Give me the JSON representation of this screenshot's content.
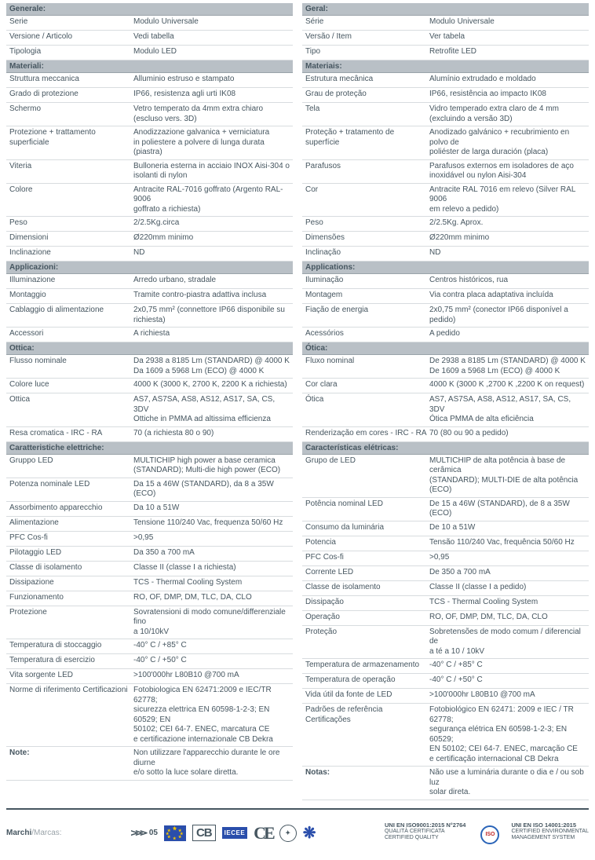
{
  "left": {
    "sections": [
      {
        "type": "head",
        "text": "Generale:"
      },
      {
        "type": "row",
        "label": "Serie",
        "value": "Modulo Universale"
      },
      {
        "type": "row",
        "label": "Versione / Articolo",
        "value": "Vedi tabella"
      },
      {
        "type": "row",
        "label": "Tipologia",
        "value": "Modulo LED"
      },
      {
        "type": "head",
        "text": "Materiali:"
      },
      {
        "type": "row",
        "label": "Struttura meccanica",
        "value": "Alluminio estruso e stampato"
      },
      {
        "type": "row",
        "label": "Grado di protezione",
        "value": "IP66, resistenza agli urti IK08"
      },
      {
        "type": "row",
        "label": "Schermo",
        "value": "Vetro temperato da 4mm extra chiaro\n(escluso vers. 3D)"
      },
      {
        "type": "row",
        "label": "Protezione + trattamento\nsuperficiale",
        "value": "Anodizzazione galvanica + verniciatura\nin poliestere a polvere di lunga durata (piastra)"
      },
      {
        "type": "row",
        "label": "Viteria",
        "value": "Bulloneria esterna in acciaio INOX Aisi-304 o\nisolanti di nylon"
      },
      {
        "type": "row",
        "label": "Colore",
        "value": "Antracite RAL-7016 goffrato (Argento RAL-9006\ngoffrato a richiesta)"
      },
      {
        "type": "row",
        "label": "Peso",
        "value": "2/2.5Kg.circa"
      },
      {
        "type": "row",
        "label": "Dimensioni",
        "value": "Ø220mm minimo"
      },
      {
        "type": "row",
        "label": "Inclinazione",
        "value": "ND"
      },
      {
        "type": "head",
        "text": "Applicazioni:"
      },
      {
        "type": "row",
        "label": "Illuminazione",
        "value": "Arredo urbano, stradale"
      },
      {
        "type": "row",
        "label": "Montaggio",
        "value": "Tramite contro-piastra adattiva inclusa"
      },
      {
        "type": "row",
        "label": "Cablaggio di alimentazione",
        "value": "2x0,75 mm² (connettore IP66 disponibile su\nrichiesta)"
      },
      {
        "type": "row",
        "label": "Accessori",
        "value": "A richiesta"
      },
      {
        "type": "head",
        "text": "Ottica:"
      },
      {
        "type": "row",
        "label": "Flusso nominale",
        "value": "Da 2938 a 8185 Lm (STANDARD) @ 4000 K\nDa 1609 a 5968 Lm (ECO) @ 4000 K"
      },
      {
        "type": "row",
        "label": "Colore luce",
        "value": "4000 K (3000 K, 2700 K, 2200 K a richiesta)"
      },
      {
        "type": "row",
        "label": "Ottica",
        "value": "AS7, AS7SA, AS8, AS12, AS17, SA, CS, 3DV\nOttiche in PMMA ad altissima efficienza"
      },
      {
        "type": "row",
        "label": "Resa cromatica - IRC - RA",
        "value": "70 (a richiesta 80 o 90)"
      },
      {
        "type": "head",
        "text": "Caratteristiche elettriche:"
      },
      {
        "type": "row",
        "label": "Gruppo LED",
        "value": "MULTICHIP high power a base ceramica\n(STANDARD); Multi-die high power (ECO)"
      },
      {
        "type": "row",
        "label": "Potenza nominale LED",
        "value": "Da 15 a 46W (STANDARD), da 8 a 35W (ECO)"
      },
      {
        "type": "row",
        "label": "Assorbimento apparecchio",
        "value": "Da 10 a 51W"
      },
      {
        "type": "row",
        "label": "Alimentazione",
        "value": "Tensione 110/240 Vac, frequenza 50/60 Hz"
      },
      {
        "type": "row",
        "label": "PFC Cos-fi",
        "value": ">0,95"
      },
      {
        "type": "row",
        "label": "Pilotaggio LED",
        "value": "Da 350 a 700 mA"
      },
      {
        "type": "row",
        "label": "Classe di isolamento",
        "value": "Classe II (classe I a richiesta)"
      },
      {
        "type": "row",
        "label": "Dissipazione",
        "value": "TCS - Thermal Cooling System"
      },
      {
        "type": "row",
        "label": "Funzionamento",
        "value": "RO, OF, DMP, DM, TLC, DA, CLO"
      },
      {
        "type": "row",
        "label": "Protezione",
        "value": "Sovratensioni di modo comune/differenziale fino\na 10/10kV"
      },
      {
        "type": "row",
        "label": "Temperatura di stoccaggio",
        "value": "-40° C / +85° C"
      },
      {
        "type": "row",
        "label": "Temperatura di esercizio",
        "value": "-40° C / +50° C"
      },
      {
        "type": "row",
        "label": "Vita sorgente LED",
        "value": ">100'000hr L80B10 @700 mA"
      },
      {
        "type": "row",
        "label": "Norme di riferimento\nCertificazioni",
        "value": "Fotobiologica EN 62471:2009 e IEC/TR 62778;\nsicurezza elettrica EN 60598-1-2-3; EN 60529; EN\n50102; CEI 64-7. ENEC, marcatura CE\ne certificazione internazionale CB Dekra"
      },
      {
        "type": "note",
        "label": "Note:",
        "value": "Non utilizzare l'apparecchio durante le ore diurne\ne/o sotto la luce solare diretta."
      }
    ]
  },
  "right": {
    "sections": [
      {
        "type": "head",
        "text": "Geral:"
      },
      {
        "type": "row",
        "label": "Série",
        "value": "Modulo Universale"
      },
      {
        "type": "row",
        "label": "Versão / Item",
        "value": "Ver tabela"
      },
      {
        "type": "row",
        "label": "Tipo",
        "value": "Retrofite LED"
      },
      {
        "type": "head",
        "text": "Materiais:"
      },
      {
        "type": "row",
        "label": "Estrutura mecânica",
        "value": "Alumínio extrudado e moldado"
      },
      {
        "type": "row",
        "label": "Grau de proteção",
        "value": "IP66, resistência ao impacto IK08"
      },
      {
        "type": "row",
        "label": "Tela",
        "value": "Vidro temperado extra claro de 4 mm\n(excluindo a versão 3D)"
      },
      {
        "type": "row",
        "label": "Proteção + tratamento\nde superfície",
        "value": "Anodizado galvánico + recubrimiento en polvo de\npoliéster de larga duración (placa)"
      },
      {
        "type": "row",
        "label": "Parafusos",
        "value": "Parafusos externos em isoladores de aço\ninoxidável ou nylon Aisi-304"
      },
      {
        "type": "row",
        "label": "Cor",
        "value": "Antracite RAL 7016 em relevo (Silver RAL 9006\nem relevo a pedido)"
      },
      {
        "type": "row",
        "label": "Peso",
        "value": "2/2.5Kg. Aprox."
      },
      {
        "type": "row",
        "label": "Dimensões",
        "value": "Ø220mm minimo"
      },
      {
        "type": "row",
        "label": "Inclinação",
        "value": "ND"
      },
      {
        "type": "head",
        "text": "Applications:"
      },
      {
        "type": "row",
        "label": "Iluminação",
        "value": "Centros históricos, rua"
      },
      {
        "type": "row",
        "label": "Montagem",
        "value": "Via contra placa adaptativa incluída"
      },
      {
        "type": "row",
        "label": "Fiação de energia",
        "value": "2x0,75 mm² (conector IP66 disponível a pedido)"
      },
      {
        "type": "row",
        "label": "Acessórios",
        "value": "A pedido"
      },
      {
        "type": "head",
        "text": "Ótica:"
      },
      {
        "type": "row",
        "label": "Fluxo nominal",
        "value": "De 2938 a 8185 Lm (STANDARD) @ 4000 K\nDe 1609 a 5968 Lm (ECO) @ 4000 K"
      },
      {
        "type": "row",
        "label": "Cor clara",
        "value": "4000 K (3000 K ,2700 K ,2200 K on request)"
      },
      {
        "type": "row",
        "label": " Ótica",
        "value": "AS7, AS7SA, AS8, AS12, AS17, SA, CS, 3DV\nÓtica PMMA de alta eficiência"
      },
      {
        "type": "row",
        "label": "Renderização em cores - IRC - RA",
        "value": "70 (80 ou 90 a pedido)"
      },
      {
        "type": "head",
        "text": "Características elétricas:"
      },
      {
        "type": "row",
        "label": "Grupo de LED",
        "value": "MULTICHIP de alta potência à base de cerâmica\n(STANDARD); MULTI-DIE de alta potência (ECO)"
      },
      {
        "type": "row",
        "label": "Potência nominal LED",
        "value": "De 15 a 46W (STANDARD), de 8 a 35W (ECO)"
      },
      {
        "type": "row",
        "label": "Consumo da luminária",
        "value": "De 10 a 51W"
      },
      {
        "type": "row",
        "label": "Potencia",
        "value": "Tensão 110/240 Vac, frequência 50/60 Hz"
      },
      {
        "type": "row",
        "label": "PFC Cos-fi",
        "value": " >0,95"
      },
      {
        "type": "row",
        "label": "Corrente LED",
        "value": "De 350 a 700 mA"
      },
      {
        "type": "row",
        "label": "Classe de isolamento",
        "value": "Classe II (classe I a pedido)"
      },
      {
        "type": "row",
        "label": "Dissipação",
        "value": "TCS - Thermal Cooling System"
      },
      {
        "type": "row",
        "label": "Operação",
        "value": "RO, OF, DMP, DM, TLC, DA, CLO"
      },
      {
        "type": "row",
        "label": "Proteção",
        "value": "Sobretensões de modo comum / diferencial de\na té a 10 / 10kV"
      },
      {
        "type": "row",
        "label": "Temperatura de armazenamento",
        "value": "-40° C / +85° C"
      },
      {
        "type": "row",
        "label": "Temperatura de operação",
        "value": "-40° C / +50° C"
      },
      {
        "type": "row",
        "label": "Vida útil da fonte de LED",
        "value": ">100'000hr L80B10 @700 mA"
      },
      {
        "type": "row",
        "label": "Padrões de referência\nCertificações",
        "value": "Fotobiológico EN 62471: 2009 e IEC / TR 62778;\nsegurança elétrica EN 60598-1-2-3; EN 60529;\nEN 50102; CEI 64-7. ENEC, marcação CE\ne certificação internacional CB Dekra"
      },
      {
        "type": "note",
        "label": "Notas:",
        "value": "Não use a luminária durante o dia e / ou sob luz\nsolar direta."
      }
    ]
  },
  "footer": {
    "brand_label": "Marchi",
    "brand_label_alt": "/Marcas:",
    "marks": {
      "es05": "05",
      "cb": "CB",
      "iecee": "IECEE",
      "ce": "CE",
      "iso": "ISO"
    },
    "cert1_title": "UNI EN ISO9001:2015 N°2764",
    "cert1_line1": "QUALITÀ CERTIFICATA",
    "cert1_line2": "CERTIFIED QUALITY",
    "cert2_title": "UNI EN ISO 14001:2015",
    "cert2_line1": "CERTIFIED ENVIRONMENTAL",
    "cert2_line2": "MANAGEMENT SYSTEM"
  },
  "colors": {
    "text": "#465660",
    "header_bg": "#b9c0c6",
    "border": "#d8dcdf"
  }
}
